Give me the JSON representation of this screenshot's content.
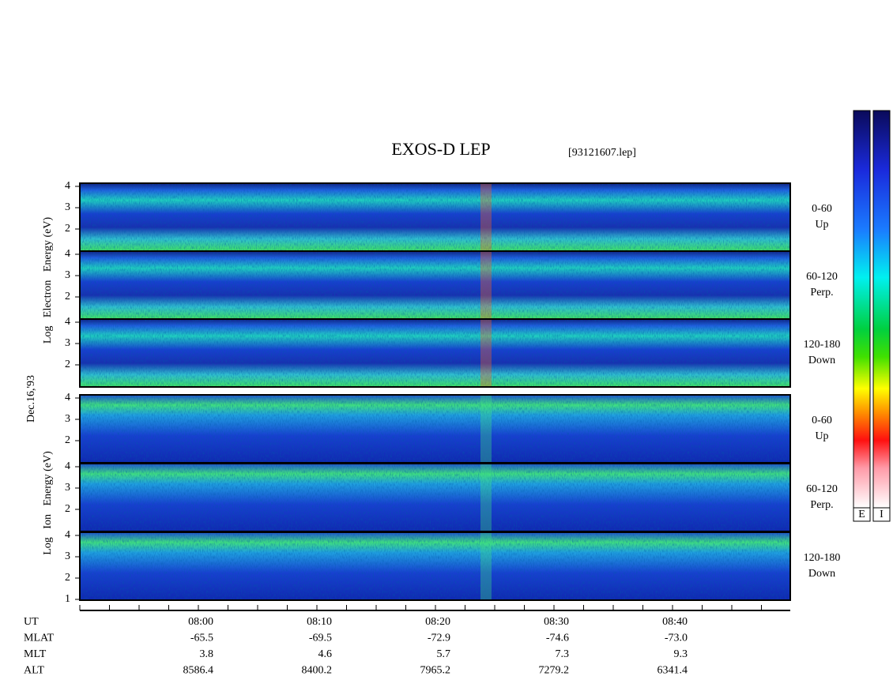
{
  "title": "EXOS-D LEP",
  "file": "[93121607.lep]",
  "date": "Dec.16,'93",
  "electron_axis_label": "Log   Electron   Energy (eV)",
  "ion_axis_label": "Log   Ion   Energy (eV)",
  "panels": [
    {
      "species": "electron",
      "yticks": [
        4,
        3,
        2
      ],
      "label": [
        "0-60",
        "Up"
      ]
    },
    {
      "species": "electron",
      "yticks": [
        4,
        3,
        2
      ],
      "label": [
        "60-120",
        "Perp."
      ]
    },
    {
      "species": "electron",
      "yticks": [
        4,
        3,
        2
      ],
      "label": [
        "120-180",
        "Down"
      ]
    },
    {
      "species": "ion",
      "yticks": [
        4,
        3,
        2
      ],
      "label": [
        "0-60",
        "Up"
      ]
    },
    {
      "species": "ion",
      "yticks": [
        4,
        3,
        2
      ],
      "label": [
        "60-120",
        "Perp."
      ]
    },
    {
      "species": "ion",
      "yticks": [
        4,
        3,
        2,
        1
      ],
      "label": [
        "120-180",
        "Down"
      ]
    }
  ],
  "time_axis": {
    "rows": [
      {
        "name": "UT",
        "values": [
          "08:00",
          "08:10",
          "08:20",
          "08:30",
          "08:40"
        ]
      },
      {
        "name": "MLAT",
        "values": [
          "-65.5",
          "-69.5",
          "-72.9",
          "-74.6",
          "-73.0"
        ]
      },
      {
        "name": "MLT",
        "values": [
          "3.8",
          "4.6",
          "5.7",
          "7.3",
          "9.3"
        ]
      },
      {
        "name": "ALT",
        "values": [
          "8586.4",
          "8400.2",
          "7965.2",
          "7279.2",
          "6341.4"
        ]
      }
    ]
  },
  "colorbar_labels": [
    "E",
    "I"
  ]
}
